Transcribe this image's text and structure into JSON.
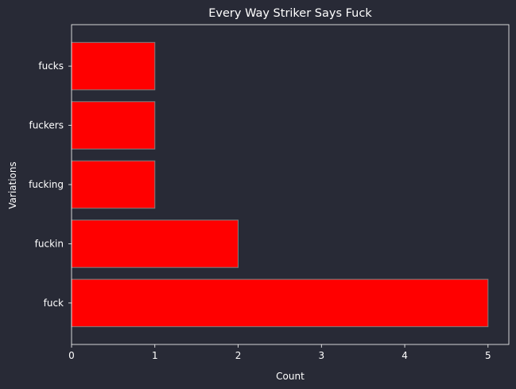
{
  "chart_data": {
    "type": "bar",
    "orientation": "horizontal",
    "title": "Every Way Striker Says Fuck",
    "xlabel": "Count",
    "ylabel": "Variations",
    "categories": [
      "fuck",
      "fuckin",
      "fucking",
      "fuckers",
      "fucks"
    ],
    "values": [
      5,
      2,
      1,
      1,
      1
    ],
    "xlim": [
      0,
      5.25
    ],
    "xticks": [
      0,
      1,
      2,
      3,
      4,
      5
    ],
    "grid": false,
    "colors": {
      "background": "#282a36",
      "bar": "#ff0000",
      "bar_edge": "#808080",
      "text": "#ffffff",
      "axes": "#ffffff"
    }
  }
}
